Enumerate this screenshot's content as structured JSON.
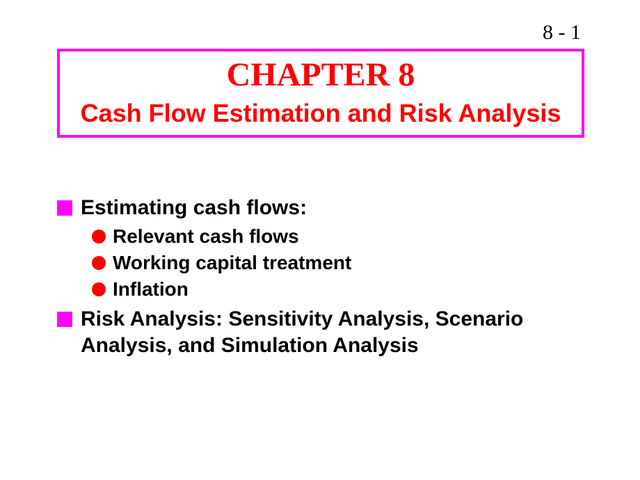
{
  "pageNumber": "8 - 1",
  "chapterNumber": "CHAPTER 8",
  "chapterTitle": "Cash Flow Estimation and Risk Analysis",
  "colors": {
    "titleBorder": "#ff00ff",
    "titleText": "#ff0000",
    "squareBullet": "#ff00ff",
    "circleBullet": "#ff0000",
    "bodyText": "#000000",
    "background": "#ffffff"
  },
  "typography": {
    "pageNumberSize": 30,
    "chapterNumberSize": 48,
    "chapterTitleSize": 36,
    "topItemSize": 30,
    "subItemSize": 28
  },
  "bullets": {
    "squareSize": 22,
    "circleSize": 20
  },
  "content": {
    "items": [
      {
        "text": "Estimating cash flows:",
        "subitems": [
          "Relevant cash flows",
          "Working capital treatment",
          "Inflation"
        ]
      },
      {
        "text": "Risk Analysis: Sensitivity Analysis, Scenario Analysis, and Simulation Analysis",
        "subitems": []
      }
    ]
  }
}
